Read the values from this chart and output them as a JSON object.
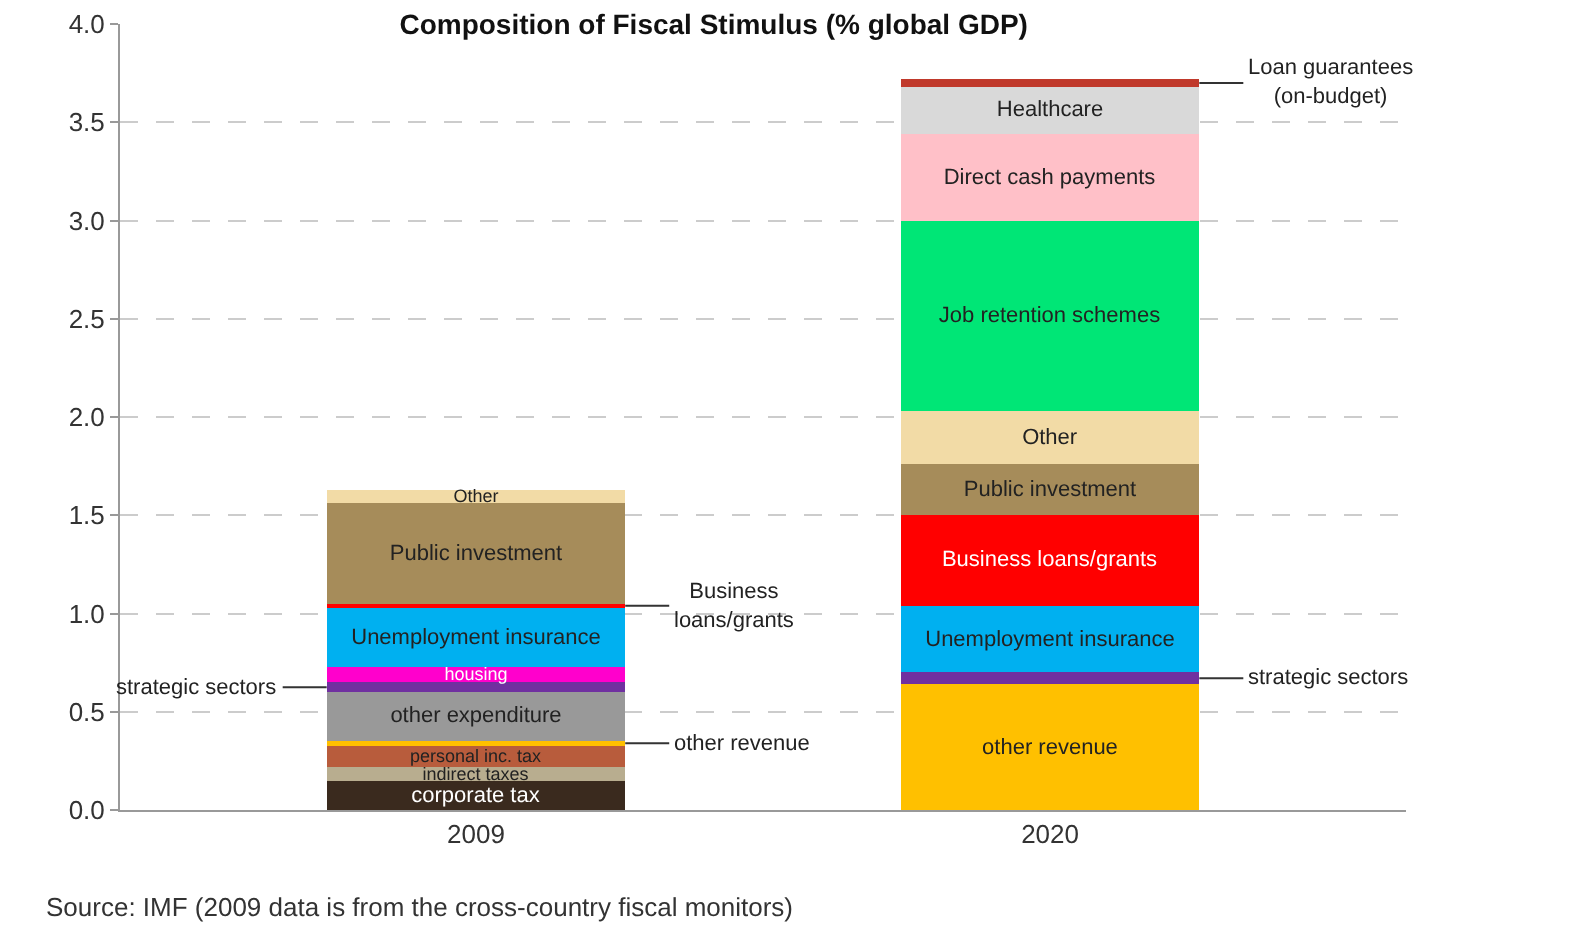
{
  "chart_data": {
    "type": "bar",
    "stacked": true,
    "title": "Composition of Fiscal Stimulus (% global GDP)",
    "categories": [
      "2009",
      "2020"
    ],
    "ylim": [
      0,
      4
    ],
    "yticks": [
      {
        "value": 0,
        "label": "0.0"
      },
      {
        "value": 0.5,
        "label": "0.5"
      },
      {
        "value": 1,
        "label": "1.0"
      },
      {
        "value": 1.5,
        "label": "1.5"
      },
      {
        "value": 2,
        "label": "2.0"
      },
      {
        "value": 2.5,
        "label": "2.5"
      },
      {
        "value": 3,
        "label": "3.0"
      },
      {
        "value": 3.5,
        "label": "3.5"
      },
      {
        "value": 4,
        "label": "4.0"
      }
    ],
    "grid": "y",
    "legend": false,
    "series": [
      {
        "name": "corporate tax",
        "color": "#3a2a1e",
        "values": [
          0.15,
          null
        ]
      },
      {
        "name": "indirect taxes",
        "color": "#b8ad8f",
        "values": [
          0.07,
          null
        ]
      },
      {
        "name": "personal inc. tax",
        "color": "#b85c3c",
        "values": [
          0.11,
          null
        ]
      },
      {
        "name": "other revenue",
        "color": "#ffc000",
        "values": [
          0.02,
          0.64
        ]
      },
      {
        "name": "other expenditure",
        "color": "#999999",
        "values": [
          0.25,
          null
        ]
      },
      {
        "name": "strategic sectors",
        "color": "#7030a0",
        "values": [
          0.05,
          0.06
        ]
      },
      {
        "name": "housing",
        "color": "#ff00cc",
        "values": [
          0.08,
          null
        ]
      },
      {
        "name": "Unemployment insurance",
        "color": "#00b0f0",
        "values": [
          0.3,
          0.34
        ]
      },
      {
        "name": "Business loans/grants",
        "color": "#ff0000",
        "values": [
          0.02,
          0.46
        ]
      },
      {
        "name": "Public investment",
        "color": "#a68c5a",
        "values": [
          0.51,
          0.26
        ]
      },
      {
        "name": "Other",
        "color": "#f2dba6",
        "values": [
          0.07,
          0.27
        ]
      },
      {
        "name": "Job retention schemes",
        "color": "#00e676",
        "values": [
          null,
          0.97
        ]
      },
      {
        "name": "Direct cash payments",
        "color": "#ffc0c8",
        "values": [
          null,
          0.44
        ]
      },
      {
        "name": "Healthcare",
        "color": "#d9d9d9",
        "values": [
          null,
          0.24
        ]
      },
      {
        "name": "Loan guarantees (on-budget)",
        "color": "#c0392b",
        "values": [
          null,
          0.04
        ]
      }
    ],
    "annotations": [
      "Source: IMF (2009 data is from the cross-country fiscal monitors)"
    ]
  }
}
